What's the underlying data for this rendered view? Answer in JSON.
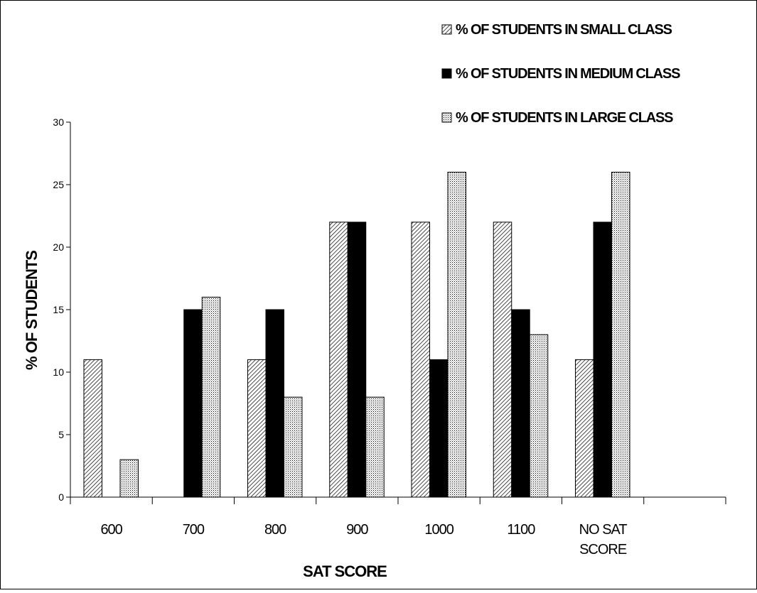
{
  "chart_data": {
    "type": "bar",
    "categories": [
      "600",
      "700",
      "800",
      "900",
      "1000",
      "1100",
      "NO SAT\nSCORE",
      ""
    ],
    "series": [
      {
        "name": "% OF STUDENTS IN SMALL CLASS",
        "pattern": "hatch-diag",
        "values": [
          11,
          0,
          11,
          22,
          22,
          22,
          11,
          null
        ]
      },
      {
        "name": "% OF STUDENTS IN MEDIUM CLASS",
        "pattern": "solid",
        "values": [
          0,
          15,
          15,
          22,
          11,
          15,
          22,
          null
        ]
      },
      {
        "name": "% OF STUDENTS IN LARGE CLASS",
        "pattern": "dots",
        "values": [
          3,
          16,
          8,
          8,
          26,
          13,
          26,
          null
        ]
      }
    ],
    "xlabel": "SAT SCORE",
    "ylabel": "% OF STUDENTS",
    "ylim": [
      0,
      30
    ],
    "yticks": [
      0,
      5,
      10,
      15,
      20,
      25,
      30
    ],
    "grid": false,
    "legend": "top-right",
    "colors": {
      "small": "#000000",
      "medium": "#000000",
      "large": "#000000",
      "background": "#ffffff"
    }
  }
}
